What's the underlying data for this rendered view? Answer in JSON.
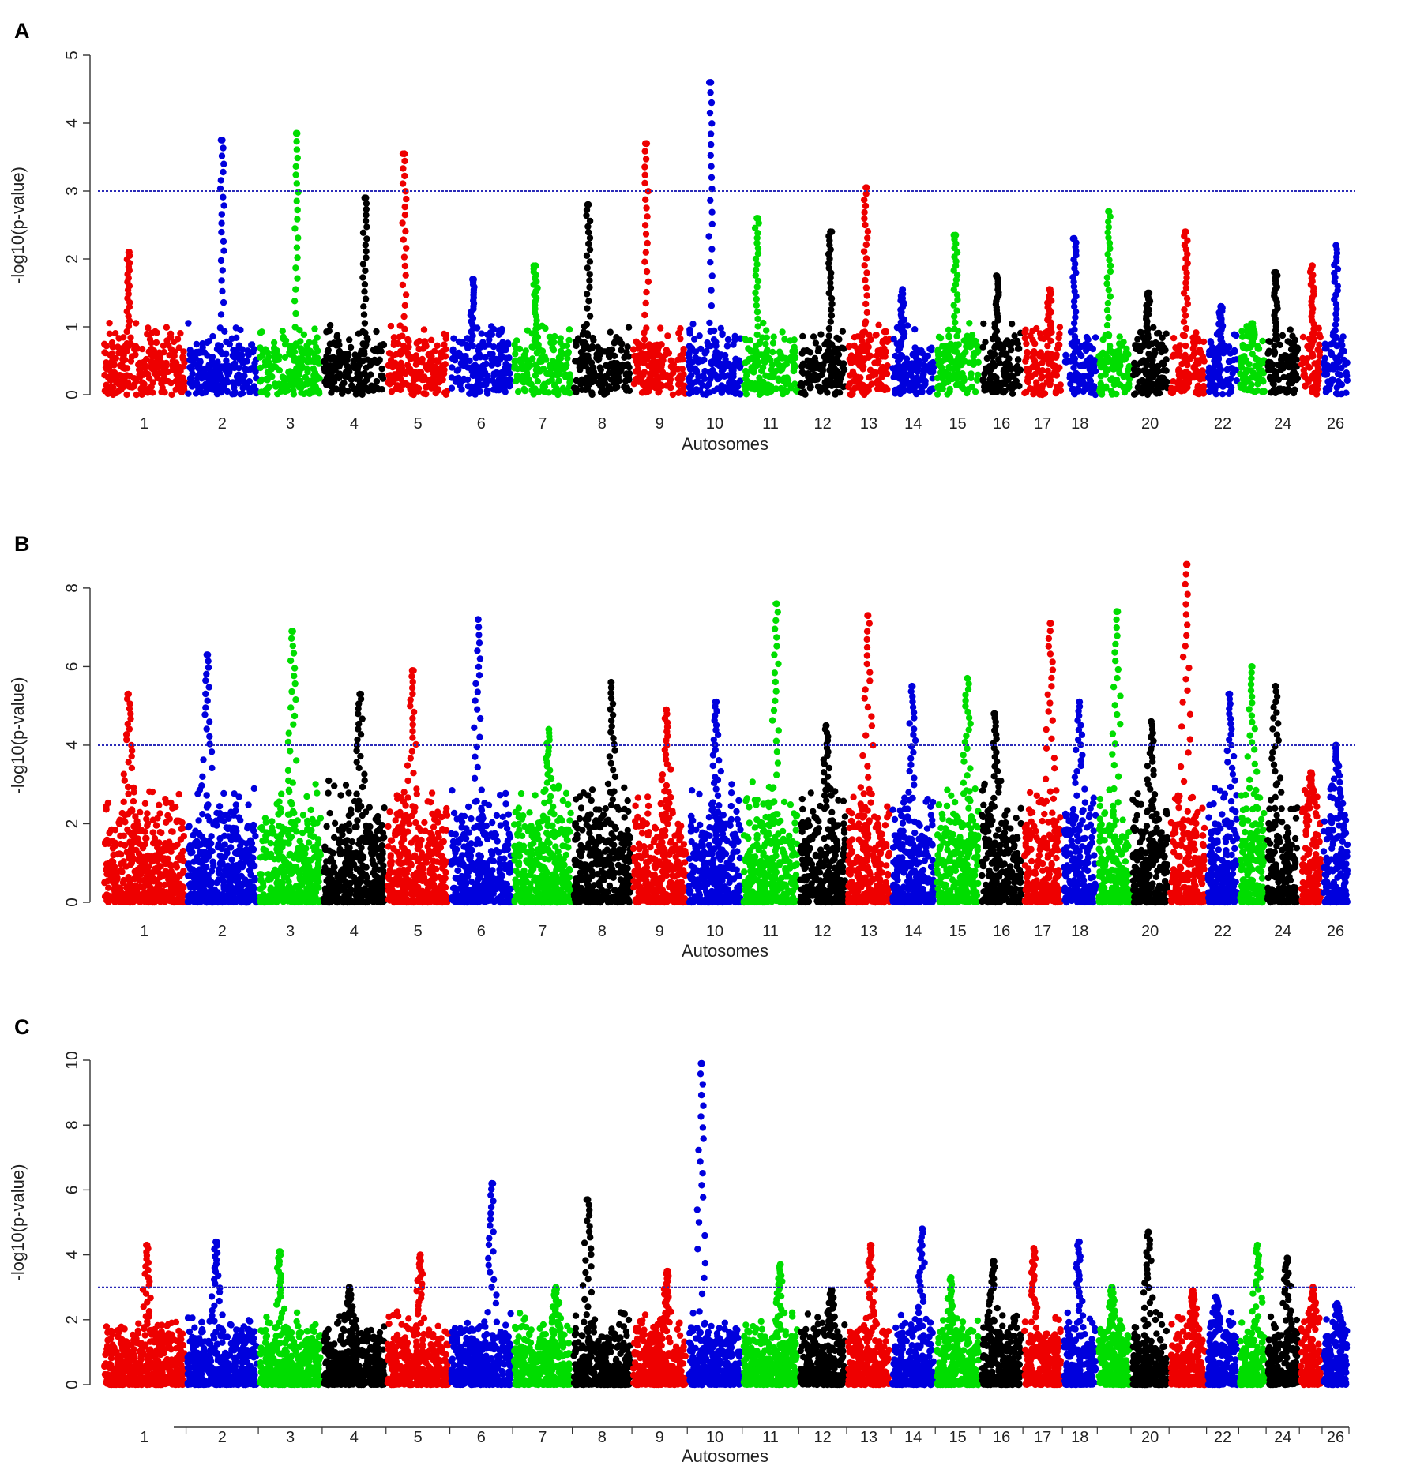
{
  "figure": {
    "panels": [
      "A",
      "B",
      "C"
    ]
  },
  "colors": {
    "cycle": [
      "#ee0000",
      "#0000dd",
      "#00dd00",
      "#000000"
    ],
    "threshold_line": "#2b2bb8"
  },
  "chart_data": [
    {
      "type": "scatter",
      "panel": "A",
      "title": "",
      "xlabel": "Autosomes",
      "ylabel": "-log10(p-value)",
      "ylim": [
        0,
        5
      ],
      "yticks": [
        0,
        1,
        2,
        3,
        4,
        5
      ],
      "threshold": 3,
      "chromosomes": [
        "1",
        "2",
        "3",
        "4",
        "5",
        "6",
        "7",
        "8",
        "9",
        "10",
        "11",
        "12",
        "13",
        "14",
        "15",
        "16",
        "17",
        "18",
        "19",
        "20",
        "21",
        "22",
        "23",
        "24",
        "25",
        "26"
      ],
      "xtick_labels": [
        "1",
        "2",
        "3",
        "4",
        "5",
        "6",
        "7",
        "8",
        "9",
        "10",
        "11",
        "12",
        "13",
        "14",
        "15",
        "16",
        "17",
        "18",
        "20",
        "22",
        "24",
        "26"
      ],
      "peaks": [
        {
          "chr": "1",
          "value": 2.1
        },
        {
          "chr": "2",
          "value": 3.75
        },
        {
          "chr": "3",
          "value": 3.85
        },
        {
          "chr": "4",
          "value": 2.9
        },
        {
          "chr": "5",
          "value": 3.55
        },
        {
          "chr": "6",
          "value": 1.7
        },
        {
          "chr": "7",
          "value": 1.9
        },
        {
          "chr": "8",
          "value": 2.8
        },
        {
          "chr": "9",
          "value": 3.7
        },
        {
          "chr": "10",
          "value": 4.6
        },
        {
          "chr": "11",
          "value": 2.6
        },
        {
          "chr": "12",
          "value": 2.4
        },
        {
          "chr": "13",
          "value": 3.05
        },
        {
          "chr": "14",
          "value": 1.55
        },
        {
          "chr": "15",
          "value": 2.35
        },
        {
          "chr": "16",
          "value": 1.75
        },
        {
          "chr": "17",
          "value": 1.55
        },
        {
          "chr": "18",
          "value": 2.3
        },
        {
          "chr": "19",
          "value": 2.7
        },
        {
          "chr": "20",
          "value": 1.5
        },
        {
          "chr": "21",
          "value": 2.4
        },
        {
          "chr": "22",
          "value": 1.3
        },
        {
          "chr": "23",
          "value": 1.05
        },
        {
          "chr": "24",
          "value": 1.8
        },
        {
          "chr": "25",
          "value": 1.9
        },
        {
          "chr": "26",
          "value": 2.2
        }
      ]
    },
    {
      "type": "scatter",
      "panel": "B",
      "title": "",
      "xlabel": "Autosomes",
      "ylabel": "-log10(p-value)",
      "ylim": [
        0,
        8.5
      ],
      "yticks": [
        0,
        2,
        4,
        6,
        8
      ],
      "threshold": 4,
      "chromosomes": [
        "1",
        "2",
        "3",
        "4",
        "5",
        "6",
        "7",
        "8",
        "9",
        "10",
        "11",
        "12",
        "13",
        "14",
        "15",
        "16",
        "17",
        "18",
        "19",
        "20",
        "21",
        "22",
        "23",
        "24",
        "25",
        "26"
      ],
      "xtick_labels": [
        "1",
        "2",
        "3",
        "4",
        "5",
        "6",
        "7",
        "8",
        "9",
        "10",
        "11",
        "12",
        "13",
        "14",
        "15",
        "16",
        "17",
        "18",
        "20",
        "22",
        "24",
        "26"
      ],
      "peaks": [
        {
          "chr": "1",
          "value": 5.3
        },
        {
          "chr": "2",
          "value": 6.3
        },
        {
          "chr": "3",
          "value": 6.9
        },
        {
          "chr": "4",
          "value": 5.3
        },
        {
          "chr": "5",
          "value": 5.9
        },
        {
          "chr": "6",
          "value": 7.2
        },
        {
          "chr": "7",
          "value": 4.4
        },
        {
          "chr": "8",
          "value": 5.6
        },
        {
          "chr": "9",
          "value": 4.9
        },
        {
          "chr": "10",
          "value": 5.1
        },
        {
          "chr": "11",
          "value": 7.6
        },
        {
          "chr": "12",
          "value": 4.5
        },
        {
          "chr": "13",
          "value": 7.3
        },
        {
          "chr": "14",
          "value": 5.5
        },
        {
          "chr": "15",
          "value": 5.7
        },
        {
          "chr": "16",
          "value": 4.8
        },
        {
          "chr": "17",
          "value": 7.1
        },
        {
          "chr": "18",
          "value": 5.1
        },
        {
          "chr": "19",
          "value": 7.4
        },
        {
          "chr": "20",
          "value": 4.6
        },
        {
          "chr": "21",
          "value": 8.6
        },
        {
          "chr": "22",
          "value": 5.3
        },
        {
          "chr": "23",
          "value": 6.0
        },
        {
          "chr": "24",
          "value": 5.5
        },
        {
          "chr": "25",
          "value": 3.3
        },
        {
          "chr": "26",
          "value": 4.0
        }
      ]
    },
    {
      "type": "scatter",
      "panel": "C",
      "title": "",
      "xlabel": "Autosomes",
      "ylabel": "-log10(p-value)",
      "ylim": [
        0,
        10
      ],
      "yticks": [
        0,
        2,
        4,
        6,
        8,
        10
      ],
      "threshold": 3,
      "chromosomes": [
        "1",
        "2",
        "3",
        "4",
        "5",
        "6",
        "7",
        "8",
        "9",
        "10",
        "11",
        "12",
        "13",
        "14",
        "15",
        "16",
        "17",
        "18",
        "19",
        "20",
        "21",
        "22",
        "23",
        "24",
        "25",
        "26"
      ],
      "xtick_labels": [
        "1",
        "2",
        "3",
        "4",
        "5",
        "6",
        "7",
        "8",
        "9",
        "10",
        "11",
        "12",
        "13",
        "14",
        "15",
        "16",
        "17",
        "18",
        "20",
        "22",
        "24",
        "26"
      ],
      "peaks": [
        {
          "chr": "1",
          "value": 4.3
        },
        {
          "chr": "2",
          "value": 4.4
        },
        {
          "chr": "3",
          "value": 4.1
        },
        {
          "chr": "4",
          "value": 3.0
        },
        {
          "chr": "5",
          "value": 4.0
        },
        {
          "chr": "6",
          "value": 6.2
        },
        {
          "chr": "7",
          "value": 3.0
        },
        {
          "chr": "8",
          "value": 5.7
        },
        {
          "chr": "9",
          "value": 3.5
        },
        {
          "chr": "10",
          "value": 9.9
        },
        {
          "chr": "11",
          "value": 3.7
        },
        {
          "chr": "12",
          "value": 2.9
        },
        {
          "chr": "13",
          "value": 4.3
        },
        {
          "chr": "14",
          "value": 4.8
        },
        {
          "chr": "15",
          "value": 3.3
        },
        {
          "chr": "16",
          "value": 3.8
        },
        {
          "chr": "17",
          "value": 4.2
        },
        {
          "chr": "18",
          "value": 4.4
        },
        {
          "chr": "19",
          "value": 3.0
        },
        {
          "chr": "20",
          "value": 4.7
        },
        {
          "chr": "21",
          "value": 2.9
        },
        {
          "chr": "22",
          "value": 2.7
        },
        {
          "chr": "23",
          "value": 4.3
        },
        {
          "chr": "24",
          "value": 3.9
        },
        {
          "chr": "25",
          "value": 3.0
        },
        {
          "chr": "26",
          "value": 2.5
        }
      ]
    }
  ]
}
